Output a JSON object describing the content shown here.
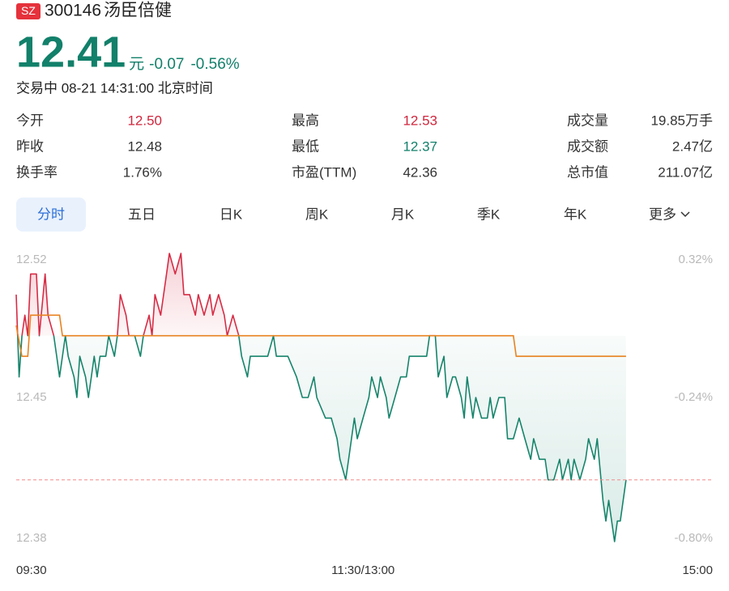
{
  "header": {
    "badge": "SZ",
    "code": "300146",
    "name": "汤臣倍健"
  },
  "quote": {
    "price": "12.41",
    "unit": "元",
    "change": "-0.07",
    "change_pct": "-0.56%",
    "color": "#12806a"
  },
  "status": "交易中 08-21 14:31:00 北京时间",
  "stats": [
    {
      "label": "今开",
      "value": "12.50",
      "color": "#d0263d"
    },
    {
      "label": "最高",
      "value": "12.53",
      "color": "#d0263d"
    },
    {
      "label": "成交量",
      "value": "19.85万手"
    },
    {
      "label": "昨收",
      "value": "12.48"
    },
    {
      "label": "最低",
      "value": "12.37",
      "color": "#12806a"
    },
    {
      "label": "成交额",
      "value": "2.47亿"
    },
    {
      "label": "换手率",
      "value": "1.76%"
    },
    {
      "label": "市盈(TTM)",
      "value": "42.36"
    },
    {
      "label": "总市值",
      "value": "211.07亿"
    }
  ],
  "tabs": [
    "分时",
    "五日",
    "日K",
    "周K",
    "月K",
    "季K",
    "年K",
    "更多"
  ],
  "chart_data": {
    "type": "line",
    "xlim": [
      0,
      241
    ],
    "xticks": [
      {
        "value": 0,
        "label": "09:30"
      },
      {
        "value": 120,
        "label": "11:30/13:00"
      },
      {
        "value": 241,
        "label": "15:00"
      }
    ],
    "ylim": [
      12.38,
      12.52
    ],
    "yticks": [
      12.52,
      12.45,
      12.38
    ],
    "y2lim": [
      -0.8,
      0.32
    ],
    "y2ticks": [
      {
        "value": 0.32,
        "label": "0.32%"
      },
      {
        "value": -0.24,
        "label": "-0.24%"
      },
      {
        "value": -0.8,
        "label": "-0.80%"
      }
    ],
    "grid": false,
    "series": [
      {
        "color": "#16846b",
        "up_color": "#d62c45",
        "x": [
          0,
          1,
          2,
          3,
          4,
          5,
          7,
          8,
          10,
          11,
          13,
          14,
          15,
          17,
          18,
          20,
          21,
          22,
          24,
          25,
          27,
          28,
          29,
          31,
          32,
          34,
          35,
          36,
          38,
          39,
          41,
          43,
          44,
          46,
          47,
          48,
          50,
          52,
          53,
          55,
          57,
          58,
          60,
          62,
          63,
          65,
          67,
          68,
          70,
          72,
          73,
          75,
          77,
          78,
          80,
          81,
          84,
          87,
          89,
          90,
          94,
          97,
          99,
          101,
          103,
          104,
          107,
          109,
          111,
          112,
          114,
          115,
          117,
          118,
          120,
          122,
          123,
          125,
          126,
          128,
          129,
          131,
          133,
          135,
          136,
          139,
          142,
          143,
          145,
          146,
          148,
          149,
          151,
          152,
          154,
          155,
          156,
          158,
          159,
          161,
          163,
          164,
          165,
          167,
          169,
          170,
          172,
          174,
          176,
          178,
          179,
          181,
          183,
          184,
          186,
          188,
          189,
          191,
          192,
          193,
          195,
          197,
          198,
          200,
          201,
          203,
          204,
          205,
          207,
          208,
          209,
          211
        ],
        "values": [
          12.5,
          12.46,
          12.48,
          12.49,
          12.48,
          12.51,
          12.51,
          12.48,
          12.51,
          12.49,
          12.48,
          12.47,
          12.46,
          12.48,
          12.47,
          12.46,
          12.45,
          12.47,
          12.46,
          12.45,
          12.47,
          12.46,
          12.47,
          12.47,
          12.48,
          12.47,
          12.48,
          12.5,
          12.49,
          12.48,
          12.48,
          12.47,
          12.48,
          12.49,
          12.48,
          12.5,
          12.49,
          12.51,
          12.52,
          12.51,
          12.52,
          12.5,
          12.5,
          12.49,
          12.5,
          12.49,
          12.5,
          12.49,
          12.5,
          12.49,
          12.48,
          12.49,
          12.48,
          12.47,
          12.46,
          12.47,
          12.47,
          12.47,
          12.48,
          12.47,
          12.47,
          12.46,
          12.45,
          12.45,
          12.46,
          12.45,
          12.44,
          12.44,
          12.43,
          12.42,
          12.41,
          12.42,
          12.44,
          12.43,
          12.44,
          12.45,
          12.46,
          12.45,
          12.46,
          12.45,
          12.44,
          12.45,
          12.46,
          12.46,
          12.47,
          12.47,
          12.47,
          12.48,
          12.48,
          12.46,
          12.47,
          12.45,
          12.46,
          12.46,
          12.45,
          12.44,
          12.46,
          12.44,
          12.45,
          12.44,
          12.44,
          12.45,
          12.44,
          12.45,
          12.45,
          12.43,
          12.43,
          12.44,
          12.43,
          12.42,
          12.43,
          12.42,
          12.42,
          12.41,
          12.41,
          12.42,
          12.41,
          12.42,
          12.41,
          12.42,
          12.41,
          12.42,
          12.43,
          12.42,
          12.43,
          12.4,
          12.39,
          12.4,
          12.38,
          12.39,
          12.39,
          12.41
        ]
      },
      {
        "color": "#e8821f",
        "x": [
          0,
          2,
          4,
          5,
          15,
          16,
          172,
          173,
          211
        ],
        "values": [
          12.485,
          12.47,
          12.47,
          12.49,
          12.49,
          12.48,
          12.48,
          12.47,
          12.47
        ]
      }
    ]
  }
}
